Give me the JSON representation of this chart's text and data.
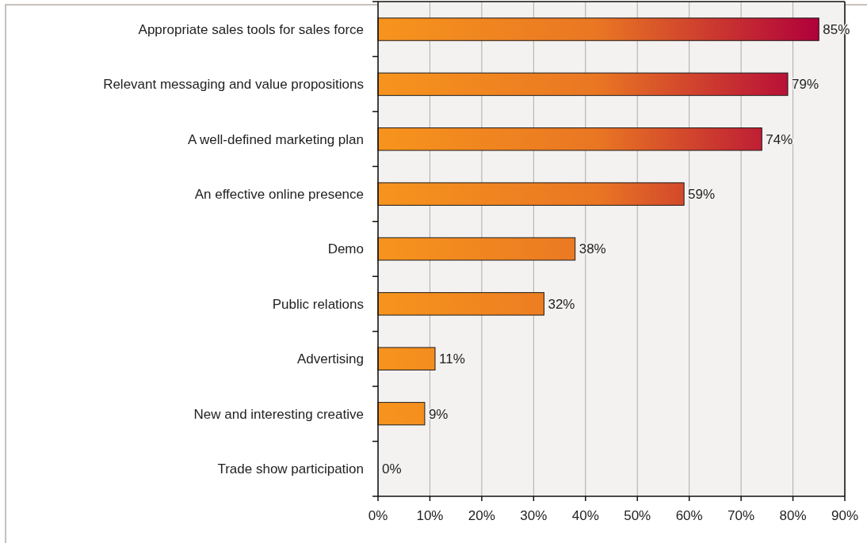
{
  "chart_data": {
    "type": "bar",
    "orientation": "horizontal",
    "categories": [
      "Appropriate sales tools for sales force",
      "Relevant messaging and value propositions",
      "A well-defined marketing plan",
      "An effective online presence",
      "Demo",
      "Public relations",
      "Advertising",
      "New and interesting creative",
      "Trade show participation"
    ],
    "values": [
      85,
      79,
      74,
      59,
      38,
      32,
      11,
      9,
      0
    ],
    "value_labels": [
      "85%",
      "79%",
      "74%",
      "59%",
      "38%",
      "32%",
      "11%",
      "9%",
      "0%"
    ],
    "color": "#f7941d",
    "xlim": [
      0,
      90
    ],
    "xticks": [
      {
        "value": 0,
        "label": "0%"
      },
      {
        "value": 10,
        "label": "10%"
      },
      {
        "value": 20,
        "label": "20%"
      },
      {
        "value": 30,
        "label": "30%"
      },
      {
        "value": 40,
        "label": "40%"
      },
      {
        "value": 50,
        "label": "50%"
      },
      {
        "value": 60,
        "label": "60%"
      },
      {
        "value": 70,
        "label": "70%"
      },
      {
        "value": 80,
        "label": "80%"
      },
      {
        "value": 90,
        "label": "90%"
      }
    ],
    "grid": "x"
  }
}
